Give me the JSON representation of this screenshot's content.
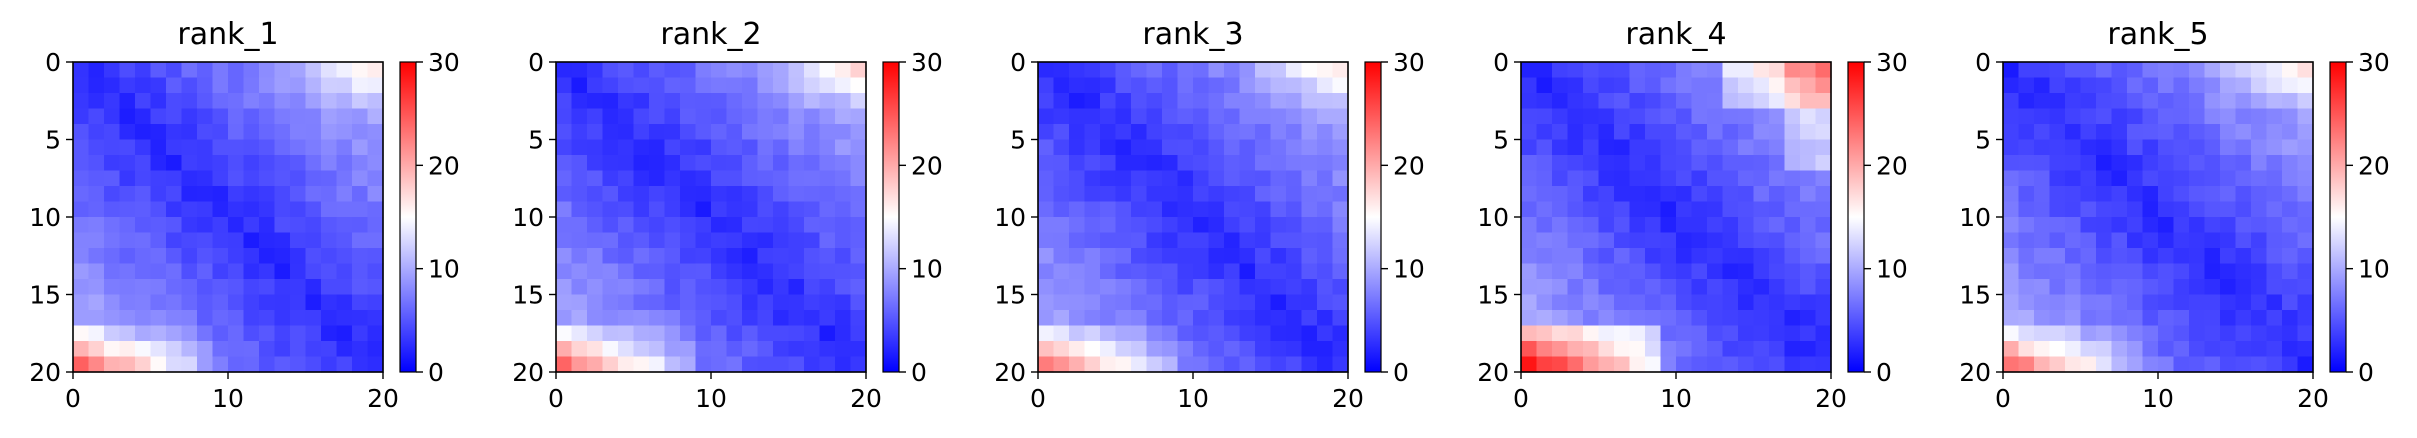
{
  "chart_data": [
    {
      "type": "heatmap",
      "title": "rank_1",
      "size": 20,
      "x_ticks": [
        "0",
        "10",
        "20"
      ],
      "y_ticks": [
        "0",
        "5",
        "10",
        "15",
        "20"
      ],
      "colorbar": {
        "ticks": [
          "0",
          "10",
          "20",
          "30"
        ],
        "range": [
          0,
          30
        ],
        "colormap": "bwr"
      },
      "ylim": [
        20,
        0
      ],
      "xlim": [
        0,
        20
      ]
    },
    {
      "type": "heatmap",
      "title": "rank_2",
      "size": 20,
      "x_ticks": [
        "0",
        "10",
        "20"
      ],
      "y_ticks": [
        "0",
        "5",
        "10",
        "15",
        "20"
      ],
      "colorbar": {
        "ticks": [
          "0",
          "10",
          "20",
          "30"
        ],
        "range": [
          0,
          30
        ],
        "colormap": "bwr"
      },
      "ylim": [
        20,
        0
      ],
      "xlim": [
        0,
        20
      ]
    },
    {
      "type": "heatmap",
      "title": "rank_3",
      "size": 20,
      "x_ticks": [
        "0",
        "10",
        "20"
      ],
      "y_ticks": [
        "0",
        "5",
        "10",
        "15",
        "20"
      ],
      "colorbar": {
        "ticks": [
          "0",
          "10",
          "20",
          "30"
        ],
        "range": [
          0,
          30
        ],
        "colormap": "bwr"
      },
      "ylim": [
        20,
        0
      ],
      "xlim": [
        0,
        20
      ]
    },
    {
      "type": "heatmap",
      "title": "rank_4",
      "size": 20,
      "x_ticks": [
        "0",
        "10",
        "20"
      ],
      "y_ticks": [
        "0",
        "5",
        "10",
        "15",
        "20"
      ],
      "colorbar": {
        "ticks": [
          "0",
          "10",
          "20",
          "30"
        ],
        "range": [
          0,
          30
        ],
        "colormap": "bwr"
      },
      "ylim": [
        20,
        0
      ],
      "xlim": [
        0,
        20
      ]
    },
    {
      "type": "heatmap",
      "title": "rank_5",
      "size": 20,
      "x_ticks": [
        "0",
        "10",
        "20"
      ],
      "y_ticks": [
        "0",
        "5",
        "10",
        "15",
        "20"
      ],
      "colorbar": {
        "ticks": [
          "0",
          "10",
          "20",
          "30"
        ],
        "range": [
          0,
          30
        ],
        "colormap": "bwr"
      },
      "ylim": [
        20,
        0
      ],
      "xlim": [
        0,
        20
      ]
    }
  ],
  "colors": {
    "low": "#0000ff",
    "mid": "#ffffff",
    "high": "#ff0000",
    "axis": "#000000"
  }
}
